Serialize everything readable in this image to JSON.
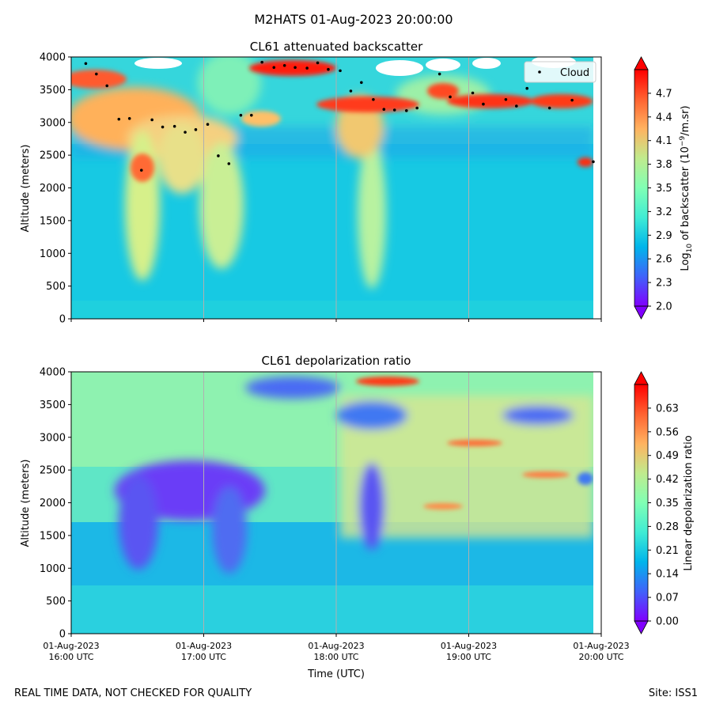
{
  "figure": {
    "suptitle": "M2HATS 01-Aug-2023 20:00:00",
    "footer_left": "REAL TIME DATA, NOT CHECKED FOR QUALITY",
    "footer_right": "Site: ISS1"
  },
  "chart_data": [
    {
      "type": "heatmap",
      "title": "CL61 attenuated backscatter",
      "ylabel": "Altitude (meters)",
      "xlabel": "",
      "xlim_hours_utc": [
        16,
        20
      ],
      "ylim": [
        0,
        4000
      ],
      "yticks": [
        0,
        500,
        1000,
        1500,
        2000,
        2500,
        3000,
        3500,
        4000
      ],
      "xticks": [
        {
          "date": "01-Aug-2023",
          "time": "16:00 UTC"
        },
        {
          "date": "01-Aug-2023",
          "time": "17:00 UTC"
        },
        {
          "date": "01-Aug-2023",
          "time": "18:00 UTC"
        },
        {
          "date": "01-Aug-2023",
          "time": "19:00 UTC"
        },
        {
          "date": "01-Aug-2023",
          "time": "20:00 UTC"
        }
      ],
      "grid": "vertical",
      "colormap": "rainbow",
      "colorbar": {
        "label_main": "Log",
        "label_sub": "10",
        "label_rest": " of backscatter (10",
        "label_sup": "−9",
        "label_end": "/m.sr)",
        "range": [
          2.0,
          5.0
        ],
        "ticks": [
          "2.0",
          "2.3",
          "2.6",
          "2.9",
          "3.2",
          "3.5",
          "3.8",
          "4.1",
          "4.4",
          "4.7"
        ],
        "extend": "both"
      },
      "legend": {
        "label": "Cloud",
        "location": "upper right"
      },
      "cloud_points": [
        {
          "t": 16.11,
          "alt": 3900
        },
        {
          "t": 16.19,
          "alt": 3740
        },
        {
          "t": 16.27,
          "alt": 3560
        },
        {
          "t": 16.36,
          "alt": 3050
        },
        {
          "t": 16.44,
          "alt": 3060
        },
        {
          "t": 16.53,
          "alt": 2270
        },
        {
          "t": 16.61,
          "alt": 3040
        },
        {
          "t": 16.69,
          "alt": 2930
        },
        {
          "t": 16.78,
          "alt": 2940
        },
        {
          "t": 16.86,
          "alt": 2850
        },
        {
          "t": 16.94,
          "alt": 2890
        },
        {
          "t": 17.03,
          "alt": 2970
        },
        {
          "t": 17.11,
          "alt": 2490
        },
        {
          "t": 17.19,
          "alt": 2370
        },
        {
          "t": 17.28,
          "alt": 3110
        },
        {
          "t": 17.36,
          "alt": 3110
        },
        {
          "t": 17.44,
          "alt": 3920
        },
        {
          "t": 17.53,
          "alt": 3840
        },
        {
          "t": 17.61,
          "alt": 3870
        },
        {
          "t": 17.69,
          "alt": 3840
        },
        {
          "t": 17.78,
          "alt": 3830
        },
        {
          "t": 17.86,
          "alt": 3910
        },
        {
          "t": 17.94,
          "alt": 3810
        },
        {
          "t": 18.03,
          "alt": 3790
        },
        {
          "t": 18.11,
          "alt": 3480
        },
        {
          "t": 18.19,
          "alt": 3610
        },
        {
          "t": 18.28,
          "alt": 3350
        },
        {
          "t": 18.36,
          "alt": 3200
        },
        {
          "t": 18.44,
          "alt": 3190
        },
        {
          "t": 18.53,
          "alt": 3180
        },
        {
          "t": 18.61,
          "alt": 3220
        },
        {
          "t": 18.78,
          "alt": 3740
        },
        {
          "t": 18.86,
          "alt": 3390
        },
        {
          "t": 19.03,
          "alt": 3450
        },
        {
          "t": 19.11,
          "alt": 3280
        },
        {
          "t": 19.28,
          "alt": 3350
        },
        {
          "t": 19.36,
          "alt": 3250
        },
        {
          "t": 19.44,
          "alt": 3520
        },
        {
          "t": 19.61,
          "alt": 3220
        },
        {
          "t": 19.78,
          "alt": 3340
        },
        {
          "t": 19.94,
          "alt": 2400
        }
      ]
    },
    {
      "type": "heatmap",
      "title": "CL61 depolarization ratio",
      "ylabel": "Altitude (meters)",
      "xlabel": "Time (UTC)",
      "xlim_hours_utc": [
        16,
        20
      ],
      "ylim": [
        0,
        4000
      ],
      "yticks": [
        0,
        500,
        1000,
        1500,
        2000,
        2500,
        3000,
        3500,
        4000
      ],
      "xticks": [
        {
          "date": "01-Aug-2023",
          "time": "16:00 UTC"
        },
        {
          "date": "01-Aug-2023",
          "time": "17:00 UTC"
        },
        {
          "date": "01-Aug-2023",
          "time": "18:00 UTC"
        },
        {
          "date": "01-Aug-2023",
          "time": "19:00 UTC"
        },
        {
          "date": "01-Aug-2023",
          "time": "20:00 UTC"
        }
      ],
      "grid": "vertical",
      "colormap": "rainbow",
      "colorbar": {
        "label": "Linear depolarization ratio",
        "range": [
          0.0,
          0.7
        ],
        "ticks": [
          "0.00",
          "0.07",
          "0.14",
          "0.21",
          "0.28",
          "0.35",
          "0.42",
          "0.49",
          "0.56",
          "0.63"
        ],
        "extend": "both"
      }
    }
  ]
}
